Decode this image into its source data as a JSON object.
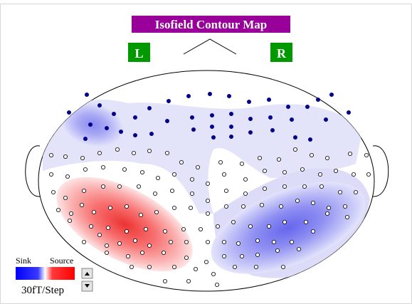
{
  "title": "Isofield Contour Map",
  "left_label": "L",
  "right_label": "R",
  "legend": {
    "sink": "Sink",
    "source": "Source",
    "step": "30fT/Step"
  }
}
